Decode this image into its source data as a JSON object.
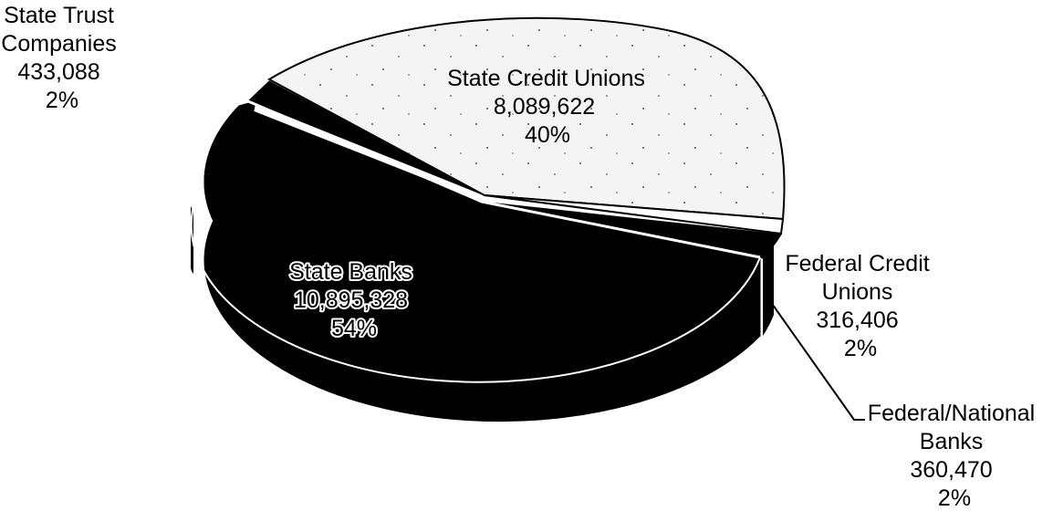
{
  "chart_data": {
    "type": "pie",
    "title": "",
    "slices": [
      {
        "name": "State Credit Unions",
        "value": 8089622,
        "value_label": "8,089,622",
        "percent_label": "40%",
        "color": "#f4f4f4"
      },
      {
        "name": "Federal Credit Unions",
        "value": 316406,
        "value_label": "316,406",
        "percent_label": "2%",
        "color": "#ffffff"
      },
      {
        "name": "Federal/National Banks",
        "value": 360470,
        "value_label": "360,470",
        "percent_label": "2%",
        "color": "#000000"
      },
      {
        "name": "State Banks",
        "value": 10895328,
        "value_label": "10,895,328",
        "percent_label": "54%",
        "color": "#000000"
      },
      {
        "name": "State Trust Companies",
        "value": 433088,
        "value_label": "433,088",
        "percent_label": "2%",
        "color": "#000000"
      }
    ],
    "labels": {
      "state_trust": {
        "line1": "State Trust",
        "line2": "Companies"
      },
      "state_credit": {
        "line1": "State Credit Unions"
      },
      "federal_credit": {
        "line1": "Federal Credit",
        "line2": "Unions"
      },
      "federal_national": {
        "line1": "Federal/National",
        "line2": "Banks"
      },
      "state_banks": {
        "line1": "State Banks"
      }
    },
    "legend": "none",
    "style": "3d-exploded"
  }
}
